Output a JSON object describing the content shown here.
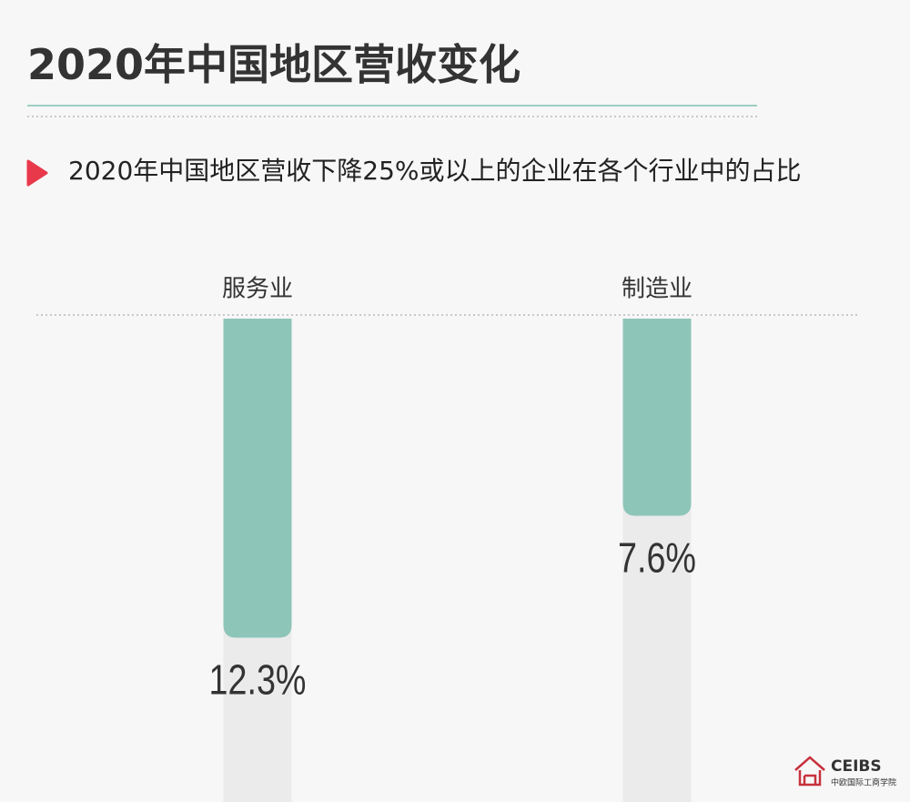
{
  "chart_data": {
    "type": "bar",
    "title": "2020年中国地区营收变化",
    "subtitle": "2020年中国地区营收下降25%或以上的企业在各个行业中的占比",
    "categories": [
      "服务业",
      "制造业"
    ],
    "values": [
      12.3,
      7.6
    ],
    "value_labels": [
      "12.3%",
      "7.6%"
    ],
    "color": "#8ec5b9"
  },
  "brand": {
    "name": "CEIBS",
    "tagline": "中欧国际工商学院"
  }
}
